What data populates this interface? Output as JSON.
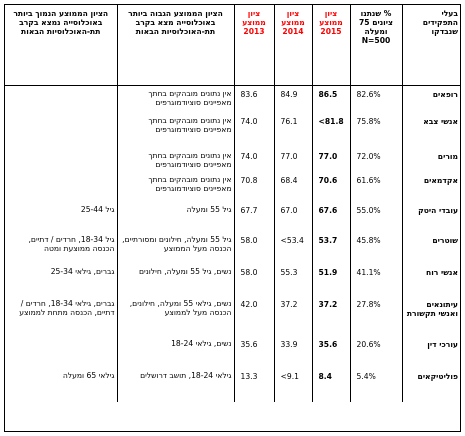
{
  "headers": {
    "category": "בעלי התפקידים שנבדקו",
    "trust_pct": "% שנתנו ציונים 75 ומעלה N=500",
    "score_2015": "ציון ממוצע 2015",
    "score_2014": "ציון ממוצע 2014",
    "score_2013": "ציון ממוצע 2013",
    "highest_group": "הציון הממוצע הגבוה ביותר באוכלוסייה מצא בקרב תת-האוכלוסיות הבאות",
    "lowest_group": "הציון הממוצע הנמוך ביותר באוכלוסייה נמצא בקרב תת-האוכלוסיות הבאות"
  },
  "rows": [
    {
      "category": "רופאים",
      "pct": "82.6%",
      "s2015": "86.5",
      "s2014": "84.9",
      "s2013": "83.6",
      "high": "אין נתונים מובהקים בחתך מאפיינים סוציודמוגרפים",
      "low": ""
    },
    {
      "category": "אנשי צבא",
      "pct": "75.8%",
      "s2015": "81.8>",
      "s2014": "76.1",
      "s2013": "74.0",
      "high": "אין נתונים מובהקים בחתך מאפיינים סוציודמוגרפים",
      "low": ""
    },
    {
      "category": "מורים",
      "pct": "72.0%",
      "s2015": "77.0",
      "s2014": "77.0",
      "s2013": "74.0",
      "high": "אין נתונים מובהקים בחתך מאפיינים סוציודמוגרפים",
      "low": ""
    },
    {
      "category": "אקדמאים",
      "pct": "61.6%",
      "s2015": "70.6",
      "s2014": "68.4",
      "s2013": "70.8",
      "high": "אין נתונים מובהקים בחתך מאפיינים סוציודמוגרפים",
      "low": ""
    },
    {
      "category": "עובדי היטק",
      "pct": "55.0%",
      "s2015": "67.6",
      "s2014": "67.0",
      "s2013": "67.7",
      "high": "גיל 55 ומעלה",
      "low": "גיל 25-44"
    },
    {
      "category": "שוטרים",
      "pct": "45.8%",
      "s2015": "53.7",
      "s2014": "53.4>",
      "s2013": "58.0",
      "high": "גיל 55 ומעלה, חילונים ומסורתיים, הכנסה מעל הממוצע",
      "low": "גיל 18-34, חרדים / דתיים, הכנסה ממוצעת ומטה"
    },
    {
      "category": "אנשי רוח",
      "pct": "41.1%",
      "s2015": "51.9",
      "s2014": "55.3",
      "s2013": "58.0",
      "high": "נשים, גיל 55 ומעלה, חילונים",
      "low": "גברים, גילאי 25-34"
    },
    {
      "category": "עיתונאים ואנשי תקשורת",
      "pct": "27.8%",
      "s2015": "37.2",
      "s2014": "37.2",
      "s2013": "42.0",
      "high": "נשים, גילאי 55 ומעלה, חילונים, הכנסה מעל לממוצע",
      "low": "גברים, גילאי 18-34, חרדים / דתיים, הכנסה מתחת לממוצע"
    },
    {
      "category": "עורכי דין",
      "pct": "20.6%",
      "s2015": "35.6",
      "s2014": "33.9",
      "s2013": "35.6",
      "high": "נשים, גילאי 18-24",
      "low": ""
    },
    {
      "category": "פוליטיקאים",
      "pct": "5.4%",
      "s2015": "8.4",
      "s2014": "9.1>",
      "s2013": "13.3",
      "high": "גילאי 18-24, תושב דרושלים",
      "low": "גילאי 65 ומעלה"
    }
  ]
}
